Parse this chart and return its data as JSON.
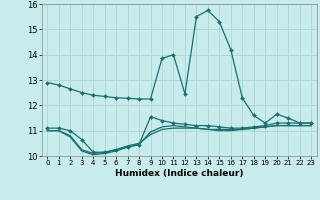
{
  "xlabel": "Humidex (Indice chaleur)",
  "background_color": "#c8ecec",
  "grid_color": "#b0d8d8",
  "line_color": "#1a7070",
  "x_hours": [
    0,
    1,
    2,
    3,
    4,
    5,
    6,
    7,
    8,
    9,
    10,
    11,
    12,
    13,
    14,
    15,
    16,
    17,
    18,
    19,
    20,
    21,
    22,
    23
  ],
  "series1": [
    12.9,
    12.8,
    12.65,
    12.5,
    12.4,
    12.35,
    12.3,
    12.28,
    12.25,
    12.25,
    13.85,
    14.0,
    12.45,
    15.5,
    15.75,
    15.3,
    14.2,
    12.3,
    11.6,
    11.3,
    11.65,
    11.5,
    11.3,
    11.3
  ],
  "series2": [
    11.1,
    11.1,
    11.0,
    10.65,
    10.15,
    10.15,
    10.25,
    10.35,
    10.45,
    11.55,
    11.4,
    11.3,
    11.25,
    11.2,
    11.2,
    11.15,
    11.1,
    11.1,
    11.15,
    11.2,
    11.3,
    11.3,
    11.3,
    11.3
  ],
  "series3": [
    11.0,
    11.0,
    10.75,
    10.2,
    10.05,
    10.1,
    10.2,
    10.35,
    10.45,
    10.95,
    11.15,
    11.2,
    11.15,
    11.1,
    11.05,
    11.05,
    11.05,
    11.05,
    11.1,
    11.15,
    11.2,
    11.2,
    11.2,
    11.2
  ],
  "series4": [
    11.0,
    11.0,
    10.8,
    10.25,
    10.1,
    10.15,
    10.25,
    10.4,
    10.5,
    10.85,
    11.05,
    11.1,
    11.1,
    11.1,
    11.05,
    11.0,
    11.0,
    11.05,
    11.1,
    11.15,
    11.2,
    11.2,
    11.2,
    11.2
  ],
  "ylim": [
    10,
    16
  ],
  "yticks": [
    10,
    11,
    12,
    13,
    14,
    15,
    16
  ],
  "xticks": [
    0,
    1,
    2,
    3,
    4,
    5,
    6,
    7,
    8,
    9,
    10,
    11,
    12,
    13,
    14,
    15,
    16,
    17,
    18,
    19,
    20,
    21,
    22,
    23
  ],
  "xlim": [
    -0.5,
    23.5
  ]
}
